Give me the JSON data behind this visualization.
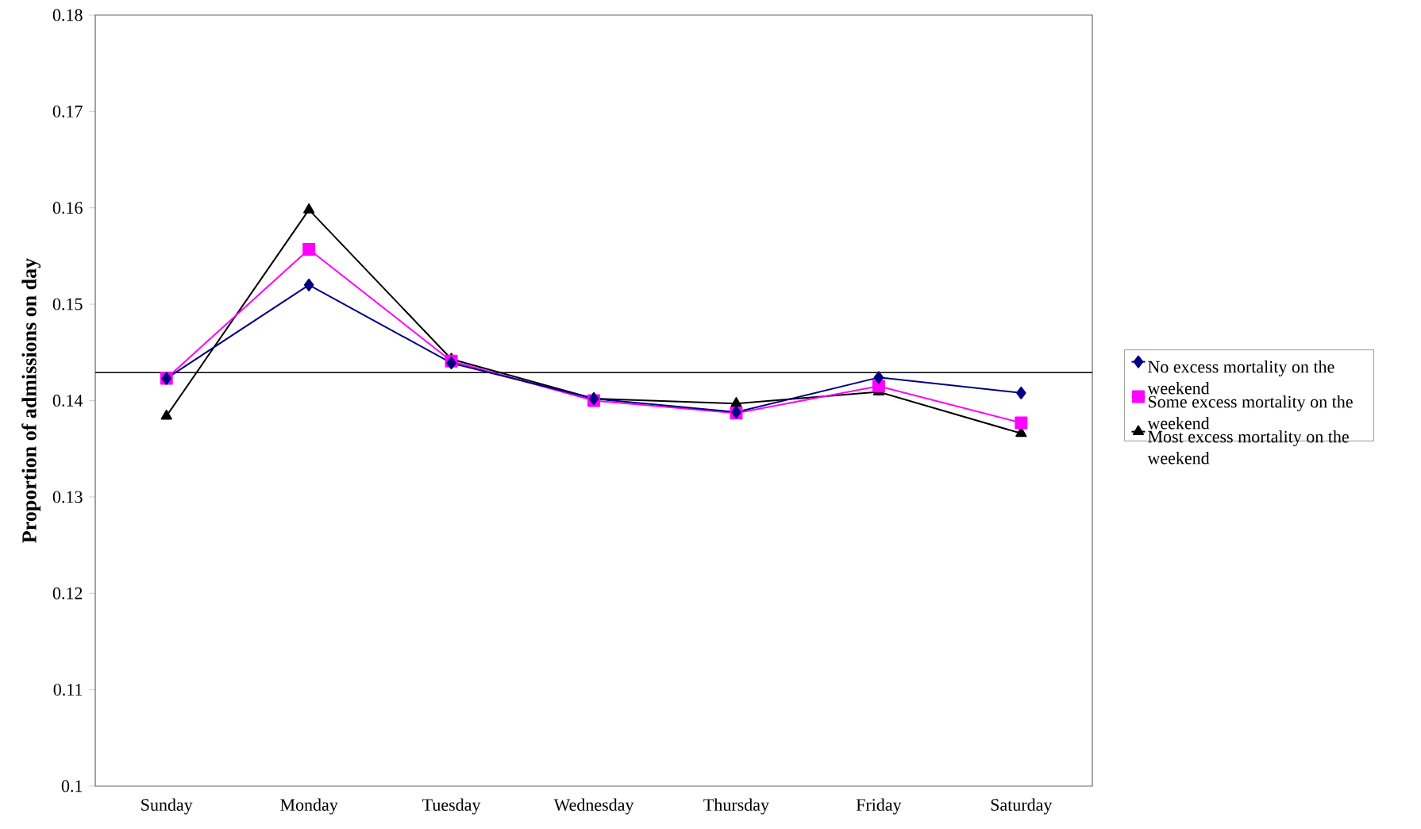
{
  "chart_data": {
    "type": "line",
    "ylabel": "**Proportion of admissions on day**",
    "categories": [
      "Sunday",
      "Monday",
      "Tuesday",
      "Wednesday",
      "Thursday",
      "Friday",
      "Saturday"
    ],
    "series": [
      {
        "name": "No excess mortality on the weekend",
        "color": "#000080",
        "marker": "diamond",
        "values": [
          0.1423,
          0.152,
          0.1439,
          0.1402,
          0.1388,
          0.1424,
          0.1408
        ]
      },
      {
        "name": "Some excess mortality on the weekend",
        "color": "#ff00ff",
        "marker": "square",
        "values": [
          0.1423,
          0.1557,
          0.1441,
          0.14,
          0.1387,
          0.1415,
          0.1377
        ]
      },
      {
        "name": "Most excess mortality on the weekend",
        "color": "#000000",
        "marker": "triangle",
        "values": [
          0.1384,
          0.1598,
          0.1443,
          0.1402,
          0.1397,
          0.1409,
          0.1366
        ]
      }
    ],
    "ylim": [
      0.1,
      0.18
    ],
    "yticks": [
      0.1,
      0.11,
      0.12,
      0.13,
      0.14,
      0.15,
      0.16,
      0.17,
      0.18
    ],
    "ref_lines": [
      {
        "axis": "y",
        "value": 0.1429,
        "color": "#000000"
      }
    ],
    "grid": false,
    "legend": "right",
    "line_style": "solid"
  }
}
